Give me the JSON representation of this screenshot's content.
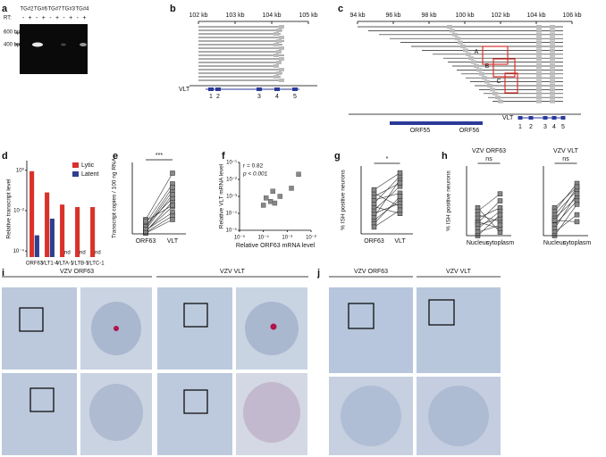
{
  "panel_labels": [
    "a",
    "b",
    "c",
    "d",
    "e",
    "f",
    "g",
    "h",
    "i",
    "j"
  ],
  "gel": {
    "lanes": [
      "TG#2",
      "TG#6",
      "TG#7",
      "TG#3",
      "TG#4"
    ],
    "rt_label": "RT:",
    "rt_signs": [
      "-",
      "+",
      "-",
      "+",
      "-",
      "+",
      "-",
      "+",
      "-",
      "+"
    ],
    "markers": [
      "600 bp",
      "400 bp"
    ]
  },
  "map_b": {
    "ticks": [
      "102 kb",
      "103 kb",
      "104 kb",
      "105 kb"
    ],
    "gene": "VLT",
    "exons": [
      "1",
      "2",
      "3",
      "4",
      "5"
    ]
  },
  "map_c": {
    "ticks": [
      "94 kb",
      "96 kb",
      "98 kb",
      "100 kb",
      "102 kb",
      "104 kb",
      "106 kb"
    ],
    "genes": [
      "ORF55",
      "ORF56"
    ],
    "gene": "VLT",
    "exons": [
      "1",
      "2",
      "3",
      "4",
      "5"
    ],
    "boxes": [
      "A",
      "B",
      "C"
    ]
  },
  "chart_data": [
    {
      "type": "bar",
      "ylabel": "Relative transcript level",
      "categories": [
        "ORF63",
        "VLT1-4",
        "VLTA-1",
        "VLTB-1",
        "VLTC-1"
      ],
      "series": [
        {
          "name": "Lytic",
          "color": "#d9312a",
          "values": [
            0.9,
            0.08,
            0.02,
            0.015,
            0.015
          ]
        },
        {
          "name": "Latent",
          "color": "#2f3f8f",
          "values": [
            0.0006,
            0.004,
            null,
            null,
            null
          ],
          "value_labels": [
            null,
            null,
            "nd",
            "nd",
            "nd"
          ]
        }
      ],
      "log_scale": true,
      "ylim": [
        5e-05,
        3
      ],
      "yticks": [
        {
          "value": 1,
          "label": "10⁰"
        },
        {
          "value": 0.01,
          "label": "10⁻²"
        },
        {
          "value": 0.0001,
          "label": "10⁻⁴"
        }
      ],
      "legend": "upper right"
    },
    {
      "type": "paired",
      "ylabel": "Transcript copies / 100 ng RNA",
      "categories": [
        "ORF63",
        "VLT"
      ],
      "annotation": "***",
      "color": "#888888",
      "ylim": [
        0,
        10
      ],
      "series": [
        {
          "values": [
            0.5,
            3
          ]
        },
        {
          "values": [
            0.3,
            4.5
          ]
        },
        {
          "values": [
            1.2,
            5
          ]
        },
        {
          "values": [
            0.8,
            6
          ]
        },
        {
          "values": [
            1.5,
            7
          ]
        },
        {
          "values": [
            0.2,
            2.5
          ]
        },
        {
          "values": [
            2,
            8.5
          ]
        },
        {
          "values": [
            1,
            6.5
          ]
        },
        {
          "values": [
            0.4,
            3.8
          ]
        },
        {
          "values": [
            0.6,
            5.5
          ]
        },
        {
          "values": [
            1.8,
            4
          ]
        },
        {
          "values": [
            0.1,
            2
          ]
        }
      ]
    },
    {
      "type": "scatter",
      "ylabel": "Relative VLT mRNA level",
      "xlabel": "Relative ORF63 mRNA level",
      "annotations": [
        "r = 0.82",
        "p < 0.001"
      ],
      "color": "#888888",
      "x": [
        0.0001,
        0.00013,
        0.0002,
        0.00025,
        0.0003,
        0.0005,
        0.0015,
        0.003
      ],
      "values": [
        0.0003,
        0.0008,
        0.0005,
        0.002,
        0.0004,
        0.001,
        0.003,
        0.02
      ],
      "xlog": true,
      "ylog": true,
      "xlim": [
        1e-05,
        0.01
      ],
      "ylim": [
        1e-05,
        0.1
      ],
      "xticks": [
        {
          "value": 1e-05,
          "label": "10⁻⁵"
        },
        {
          "value": 0.0001,
          "label": "10⁻⁴"
        },
        {
          "value": 0.001,
          "label": "10⁻³"
        },
        {
          "value": 0.01,
          "label": "10⁻²"
        }
      ],
      "yticks": [
        {
          "value": 0.1,
          "label": "10⁻¹"
        },
        {
          "value": 0.01,
          "label": "10⁻²"
        },
        {
          "value": 0.001,
          "label": "10⁻³"
        },
        {
          "value": 0.0001,
          "label": "10⁻⁴"
        },
        {
          "value": 1e-05,
          "label": "10⁻⁵"
        }
      ]
    },
    {
      "type": "paired",
      "ylabel": "% ISH positive neurons",
      "categories": [
        "ORF63",
        "VLT"
      ],
      "annotation": "*",
      "color": "#888888",
      "ylim": [
        0,
        1
      ],
      "series": [
        {
          "values": [
            0.2,
            0.5
          ]
        },
        {
          "values": [
            0.25,
            0.8
          ]
        },
        {
          "values": [
            0.3,
            0.45
          ]
        },
        {
          "values": [
            0.35,
            0.7
          ]
        },
        {
          "values": [
            0.4,
            0.3
          ]
        },
        {
          "values": [
            0.45,
            0.85
          ]
        },
        {
          "values": [
            0.5,
            0.6
          ]
        },
        {
          "values": [
            0.55,
            0.75
          ]
        },
        {
          "values": [
            0.6,
            0.4
          ]
        },
        {
          "values": [
            0.15,
            0.55
          ]
        },
        {
          "values": [
            0.65,
            0.9
          ]
        },
        {
          "values": [
            0.1,
            0.35
          ]
        }
      ]
    },
    {
      "type": "paired",
      "title": "VZV ORF63",
      "ylabel": "% ISH positive neurons",
      "categories": [
        "Nucleus",
        "cytoplasm"
      ],
      "annotation": "ns",
      "color": "#888888",
      "ylim": [
        0,
        1
      ],
      "series": [
        {
          "values": [
            0.4,
            0.05
          ]
        },
        {
          "values": [
            0.35,
            0.6
          ]
        },
        {
          "values": [
            0.3,
            0.2
          ]
        },
        {
          "values": [
            0.25,
            0.4
          ]
        },
        {
          "values": [
            0.2,
            0.1
          ]
        },
        {
          "values": [
            0.18,
            0.5
          ]
        },
        {
          "values": [
            0.15,
            0.25
          ]
        },
        {
          "values": [
            0.1,
            0.35
          ]
        },
        {
          "values": [
            0.05,
            0.15
          ]
        },
        {
          "values": [
            0,
            0.3
          ]
        }
      ]
    },
    {
      "type": "paired",
      "title": "VZV VLT",
      "categories": [
        "Nucleus",
        "cytoplasm"
      ],
      "annotation": "ns",
      "color": "#888888",
      "ylim": [
        0,
        1
      ],
      "series": [
        {
          "values": [
            0.4,
            0.7
          ]
        },
        {
          "values": [
            0.35,
            0.75
          ]
        },
        {
          "values": [
            0.3,
            0.65
          ]
        },
        {
          "values": [
            0.25,
            0.55
          ]
        },
        {
          "values": [
            0.2,
            0.7
          ]
        },
        {
          "values": [
            0.15,
            0.5
          ]
        },
        {
          "values": [
            0.1,
            0.6
          ]
        },
        {
          "values": [
            0.05,
            0.3
          ]
        },
        {
          "values": [
            0,
            0.45
          ]
        },
        {
          "values": [
            0.22,
            0.2
          ]
        }
      ]
    }
  ],
  "micrographs": {
    "i": {
      "titles": [
        "VZV ORF63",
        "VZV VLT"
      ]
    },
    "j": {
      "titles": [
        "VZV ORF63",
        "VZV VLT"
      ]
    }
  }
}
